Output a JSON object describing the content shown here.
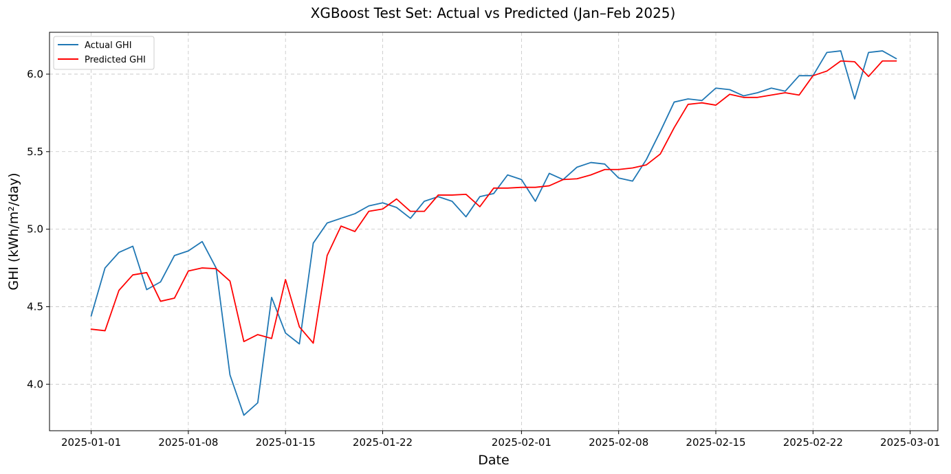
{
  "chart_data": {
    "type": "line",
    "title": "XGBoost Test Set: Actual vs Predicted (Jan–Feb 2025)",
    "xlabel": "Date",
    "ylabel": "GHI (kWh/m²/day)",
    "x_start": "2025-01-01",
    "x": [
      "2025-01-01",
      "2025-01-02",
      "2025-01-03",
      "2025-01-04",
      "2025-01-05",
      "2025-01-06",
      "2025-01-07",
      "2025-01-08",
      "2025-01-09",
      "2025-01-10",
      "2025-01-11",
      "2025-01-12",
      "2025-01-13",
      "2025-01-14",
      "2025-01-15",
      "2025-01-16",
      "2025-01-17",
      "2025-01-18",
      "2025-01-19",
      "2025-01-20",
      "2025-01-21",
      "2025-01-22",
      "2025-01-23",
      "2025-01-24",
      "2025-01-25",
      "2025-01-26",
      "2025-01-27",
      "2025-01-28",
      "2025-01-29",
      "2025-01-30",
      "2025-01-31",
      "2025-02-01",
      "2025-02-02",
      "2025-02-03",
      "2025-02-04",
      "2025-02-05",
      "2025-02-06",
      "2025-02-07",
      "2025-02-08",
      "2025-02-09",
      "2025-02-10",
      "2025-02-11",
      "2025-02-12",
      "2025-02-13",
      "2025-02-14",
      "2025-02-15",
      "2025-02-16",
      "2025-02-17",
      "2025-02-18",
      "2025-02-19",
      "2025-02-20",
      "2025-02-21",
      "2025-02-22",
      "2025-02-23",
      "2025-02-24",
      "2025-02-25",
      "2025-02-26",
      "2025-02-27",
      "2025-02-28"
    ],
    "series": [
      {
        "name": "Actual GHI",
        "color": "#1f77b4",
        "values": [
          4.44,
          4.75,
          4.85,
          4.89,
          4.61,
          4.66,
          4.83,
          4.86,
          4.92,
          4.75,
          4.06,
          3.8,
          3.88,
          4.56,
          4.33,
          4.26,
          4.91,
          5.04,
          5.07,
          5.1,
          5.15,
          5.17,
          5.14,
          5.07,
          5.18,
          5.21,
          5.18,
          5.08,
          5.21,
          5.23,
          5.35,
          5.32,
          5.18,
          5.36,
          5.32,
          5.4,
          5.43,
          5.42,
          5.33,
          5.31,
          5.45,
          5.63,
          5.82,
          5.84,
          5.83,
          5.91,
          5.9,
          5.86,
          5.88,
          5.91,
          5.89,
          5.99,
          5.99,
          6.14,
          6.15,
          5.84,
          6.14,
          6.15,
          6.1
        ]
      },
      {
        "name": "Predicted GHI",
        "color": "#ff0000",
        "values": [
          4.355,
          4.345,
          4.605,
          4.705,
          4.72,
          4.535,
          4.555,
          4.73,
          4.75,
          4.745,
          4.665,
          4.275,
          4.32,
          4.295,
          4.675,
          4.37,
          4.265,
          4.83,
          5.02,
          4.985,
          5.115,
          5.13,
          5.195,
          5.115,
          5.115,
          5.22,
          5.22,
          5.225,
          5.145,
          5.265,
          5.265,
          5.27,
          5.27,
          5.28,
          5.32,
          5.325,
          5.35,
          5.385,
          5.385,
          5.395,
          5.415,
          5.485,
          5.655,
          5.805,
          5.815,
          5.8,
          5.87,
          5.85,
          5.85,
          5.865,
          5.88,
          5.865,
          5.99,
          6.02,
          6.085,
          6.08,
          5.985,
          6.085,
          6.085
        ]
      }
    ],
    "xticks": [
      "2025-01-01",
      "2025-01-08",
      "2025-01-15",
      "2025-01-22",
      "2025-02-01",
      "2025-02-08",
      "2025-02-15",
      "2025-02-22",
      "2025-03-01"
    ],
    "yticks": [
      "4.0",
      "4.5",
      "5.0",
      "5.5",
      "6.0"
    ],
    "xlim": [
      "2024-12-29",
      "2025-03-03"
    ],
    "ylim": [
      3.7,
      6.27
    ],
    "grid": true,
    "legend": "upper left"
  }
}
